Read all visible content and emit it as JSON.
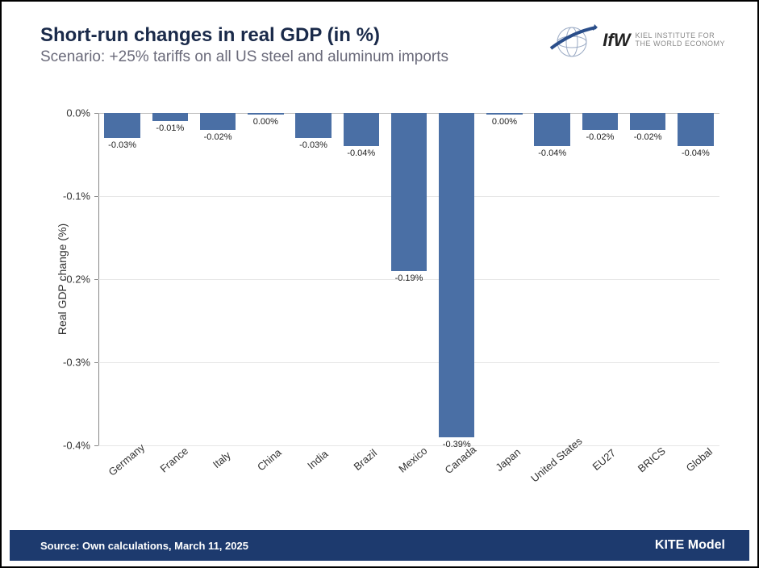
{
  "header": {
    "title": "Short-run changes in real GDP (in %)",
    "subtitle": "Scenario: +25% tariffs on all US steel and aluminum imports"
  },
  "logo": {
    "brand": "IfW",
    "line1": "KIEL INSTITUTE FOR",
    "line2": "THE WORLD ECONOMY"
  },
  "chart": {
    "type": "bar",
    "ylabel": "Real GDP change (%)",
    "ylim": [
      -0.4,
      0.0
    ],
    "ytick_step": 0.1,
    "yticks": [
      0.0,
      -0.1,
      -0.2,
      -0.3,
      -0.4
    ],
    "ytick_labels": [
      "0.0%",
      "-0.1%",
      "-0.2%",
      "-0.3%",
      "-0.4%"
    ],
    "bar_color": "#4a6fa5",
    "grid_color": "#e6e6e6",
    "background_color": "#ffffff",
    "bar_width": 0.75,
    "categories": [
      "Germany",
      "France",
      "Italy",
      "China",
      "India",
      "Brazil",
      "Mexico",
      "Canada",
      "Japan",
      "United States",
      "EU27",
      "BRICS",
      "Global"
    ],
    "values": [
      -0.03,
      -0.01,
      -0.02,
      0.0,
      -0.03,
      -0.04,
      -0.19,
      -0.39,
      0.0,
      -0.04,
      -0.02,
      -0.02,
      -0.04
    ],
    "value_labels": [
      "-0.03%",
      "-0.01%",
      "-0.02%",
      "0.00%",
      "-0.03%",
      "-0.04%",
      "-0.19%",
      "-0.39%",
      "0.00%",
      "-0.04%",
      "-0.02%",
      "-0.02%",
      "-0.04%"
    ]
  },
  "footer": {
    "source": "Source: Own calculations, March 11, 2025",
    "model": "KITE Model"
  }
}
